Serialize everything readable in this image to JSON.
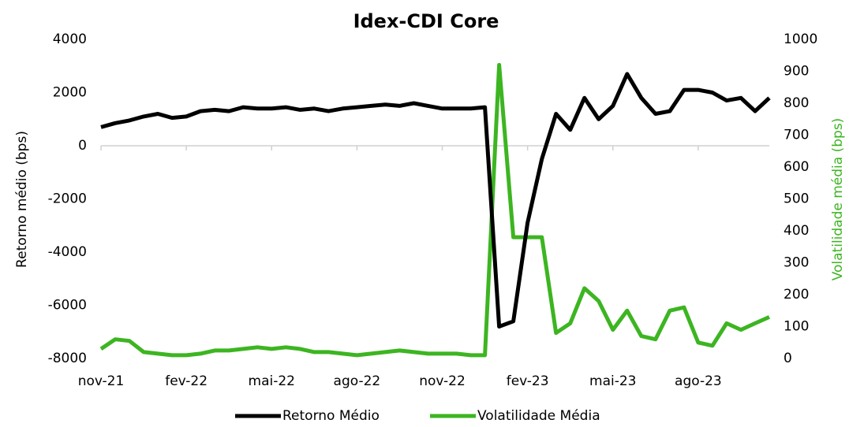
{
  "chart_data": {
    "type": "line",
    "title": "Idex-CDI Core",
    "y_label": "Retorno médio (bps)",
    "y2_label": "Volatilidade média (bps)",
    "categories": [
      "nov-21",
      null,
      null,
      null,
      null,
      null,
      "fev-22",
      null,
      null,
      null,
      null,
      null,
      "mai-22",
      null,
      null,
      null,
      null,
      null,
      "ago-22",
      null,
      null,
      null,
      null,
      null,
      "nov-22",
      null,
      null,
      null,
      null,
      null,
      "fev-23",
      null,
      null,
      null,
      null,
      null,
      "mai-23",
      null,
      null,
      null,
      null,
      null,
      "ago-23",
      null,
      null,
      null,
      null,
      null
    ],
    "series": [
      {
        "name": "Retorno Médio",
        "color": "#000000",
        "axis": "y",
        "values": [
          700,
          850,
          950,
          1100,
          1200,
          1050,
          1100,
          1300,
          1350,
          1300,
          1450,
          1400,
          1400,
          1450,
          1350,
          1400,
          1300,
          1400,
          1450,
          1500,
          1550,
          1500,
          1600,
          1500,
          1400,
          1400,
          1400,
          1450,
          -6800,
          -6600,
          -2900,
          -500,
          1200,
          600,
          1800,
          1000,
          1500,
          2700,
          1800,
          1200,
          1300,
          2100,
          2100,
          2000,
          1700,
          1800,
          1300,
          1800
        ]
      },
      {
        "name": "Volatilidade Média",
        "color": "#3cb521",
        "axis": "y2",
        "values": [
          30,
          60,
          55,
          20,
          15,
          10,
          10,
          15,
          25,
          25,
          30,
          35,
          30,
          35,
          30,
          20,
          20,
          15,
          10,
          15,
          20,
          25,
          20,
          15,
          15,
          15,
          10,
          10,
          920,
          380,
          380,
          380,
          80,
          110,
          220,
          180,
          90,
          150,
          70,
          60,
          150,
          160,
          50,
          40,
          110,
          90,
          110,
          130
        ]
      }
    ],
    "ylim": [
      -8000,
      4000
    ],
    "yticks": [
      -8000,
      -6000,
      -4000,
      -2000,
      0,
      2000,
      4000
    ],
    "y2lim": [
      0,
      1000
    ],
    "y2ticks": [
      0,
      100,
      200,
      300,
      400,
      500,
      600,
      700,
      800,
      900,
      1000
    ]
  }
}
